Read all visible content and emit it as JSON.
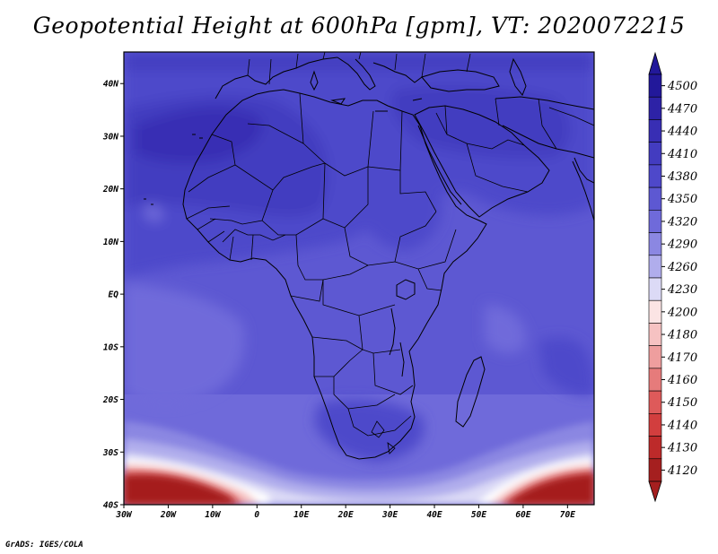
{
  "title": "Geopotential Height at 600hPa [gpm], VT: 2020072215",
  "credit": "GrADS: IGES/COLA",
  "map": {
    "region": "Africa",
    "lon_range": [
      -30,
      76
    ],
    "lat_range": [
      -40,
      46
    ],
    "lat_ticks": [
      {
        "value": 40,
        "label": "40N"
      },
      {
        "value": 30,
        "label": "30N"
      },
      {
        "value": 20,
        "label": "20N"
      },
      {
        "value": 10,
        "label": "10N"
      },
      {
        "value": 0,
        "label": "EQ"
      },
      {
        "value": -10,
        "label": "10S"
      },
      {
        "value": -20,
        "label": "20S"
      },
      {
        "value": -30,
        "label": "30S"
      },
      {
        "value": -40,
        "label": "40S"
      }
    ],
    "lon_ticks": [
      {
        "value": -30,
        "label": "30W"
      },
      {
        "value": -20,
        "label": "20W"
      },
      {
        "value": -10,
        "label": "10W"
      },
      {
        "value": 0,
        "label": "0"
      },
      {
        "value": 10,
        "label": "10E"
      },
      {
        "value": 20,
        "label": "20E"
      },
      {
        "value": 30,
        "label": "30E"
      },
      {
        "value": 40,
        "label": "40E"
      },
      {
        "value": 50,
        "label": "50E"
      },
      {
        "value": 60,
        "label": "60E"
      },
      {
        "value": 70,
        "label": "70E"
      }
    ]
  },
  "colorbar": {
    "levels": [
      {
        "label": "4500",
        "color": "#22189a"
      },
      {
        "label": "4470",
        "color": "#2d22a6"
      },
      {
        "label": "4440",
        "color": "#382eb4"
      },
      {
        "label": "4410",
        "color": "#433cc0"
      },
      {
        "label": "4380",
        "color": "#4e48ca"
      },
      {
        "label": "4350",
        "color": "#5d58d2"
      },
      {
        "label": "4320",
        "color": "#6f6ada"
      },
      {
        "label": "4290",
        "color": "#8b87e2"
      },
      {
        "label": "4260",
        "color": "#b0adec"
      },
      {
        "label": "4230",
        "color": "#dcdaf6"
      },
      {
        "label": "4200",
        "color": "#fbe4e4"
      },
      {
        "label": "4180",
        "color": "#f6c2c2"
      },
      {
        "label": "4170",
        "color": "#ee9e9e"
      },
      {
        "label": "4160",
        "color": "#e67b7b"
      },
      {
        "label": "4150",
        "color": "#de5a5a"
      },
      {
        "label": "4140",
        "color": "#d23e3e"
      },
      {
        "label": "4130",
        "color": "#bd2a2a"
      },
      {
        "label": "4120",
        "color": "#a51f1f"
      }
    ]
  }
}
